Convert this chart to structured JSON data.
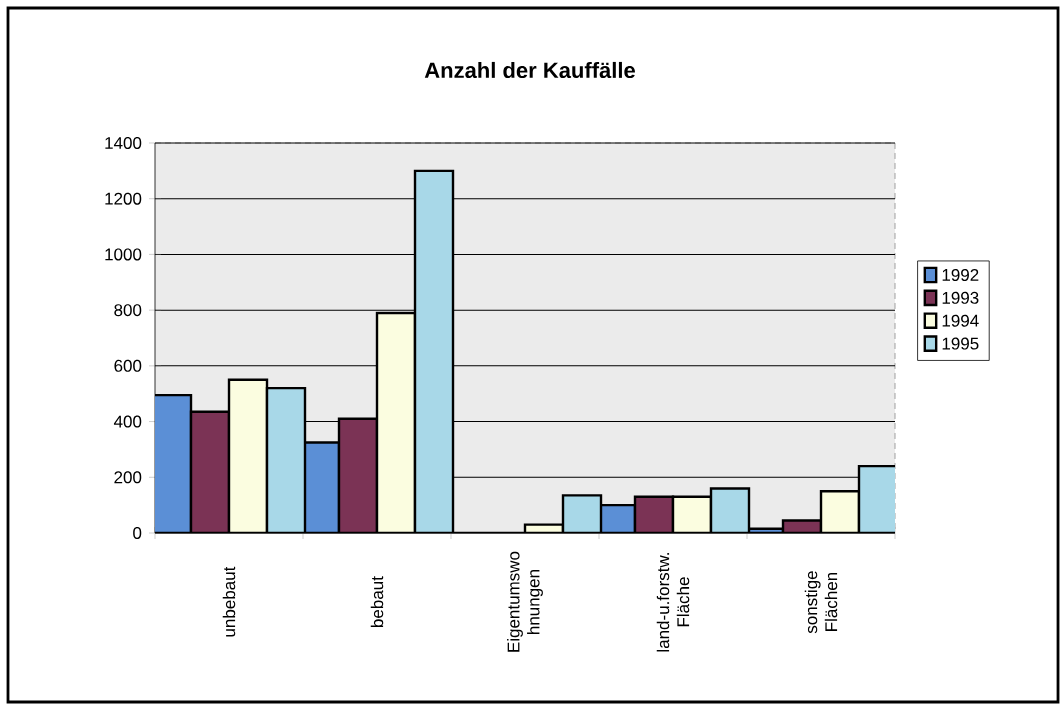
{
  "chart_data": {
    "type": "bar",
    "title": "Anzahl der Kauffälle",
    "categories": [
      "unbebaut",
      "bebaut",
      "Eigentumswo hnungen",
      "land-u.forstw. Fläche",
      "sonstige Flächen"
    ],
    "series": [
      {
        "name": "1992",
        "color": "#5b8fd6",
        "values": [
          495,
          325,
          0,
          100,
          15
        ]
      },
      {
        "name": "1993",
        "color": "#7b3355",
        "values": [
          435,
          410,
          0,
          130,
          45
        ]
      },
      {
        "name": "1994",
        "color": "#fbfde0",
        "values": [
          550,
          790,
          30,
          130,
          150
        ]
      },
      {
        "name": "1995",
        "color": "#a8d8e8",
        "values": [
          520,
          1300,
          135,
          160,
          240
        ]
      }
    ],
    "ylim": [
      0,
      1400
    ],
    "yticks": [
      0,
      200,
      400,
      600,
      800,
      1000,
      1200,
      1400
    ],
    "grid": "y",
    "legend": "right"
  }
}
